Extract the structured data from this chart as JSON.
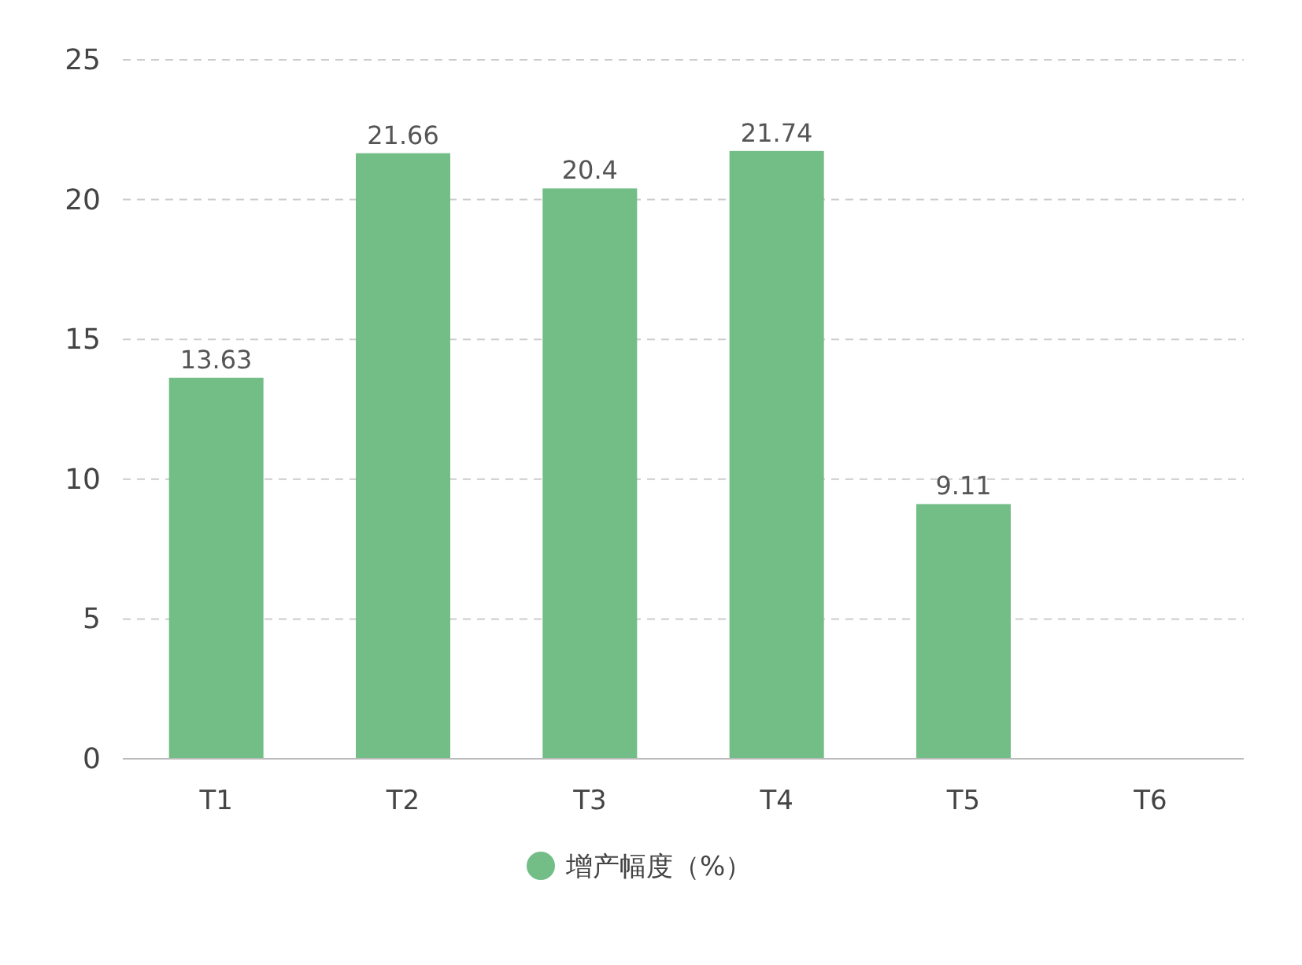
{
  "chart_data": {
    "type": "bar",
    "categories": [
      "T1",
      "T2",
      "T3",
      "T4",
      "T5",
      "T6"
    ],
    "series": [
      {
        "name": "增产幅度（%）",
        "color": "#73bd87",
        "values": [
          13.63,
          21.66,
          20.4,
          21.74,
          9.11,
          null
        ]
      }
    ],
    "ylim": [
      0,
      25
    ],
    "yticks": [
      0,
      5,
      10,
      15,
      20,
      25
    ],
    "grid": "y",
    "legend": "bottom",
    "data_labels": true
  }
}
